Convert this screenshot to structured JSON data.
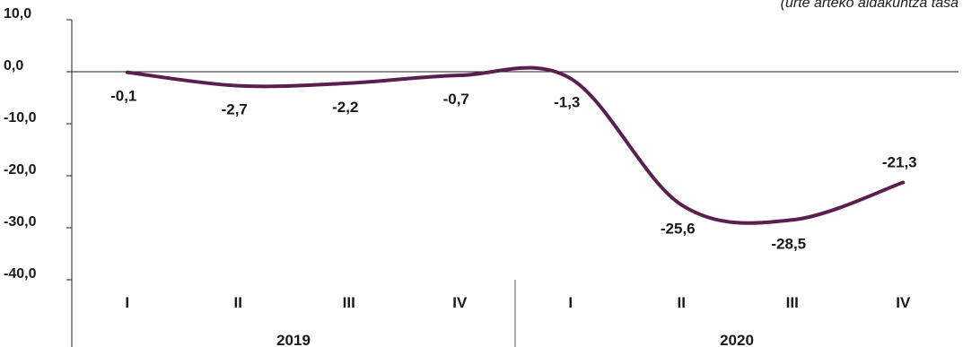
{
  "chart_data": {
    "type": "line",
    "subtitle": "(urte arteko aldakuntza  tasa",
    "years": [
      "2019",
      "2020"
    ],
    "categories": [
      "I",
      "II",
      "III",
      "IV",
      "I",
      "II",
      "III",
      "IV"
    ],
    "series": [
      {
        "values": [
          -0.1,
          -2.7,
          -2.2,
          -0.7,
          -1.3,
          -25.6,
          -28.5,
          -21.3
        ],
        "labels": [
          "-0,1",
          "-2,7",
          "-2,2",
          "-0,7",
          "-1,3",
          "-25,6",
          "-28,5",
          "-21,3"
        ],
        "color": "#5a1f4e"
      }
    ],
    "yticks": [
      "10,0",
      "0,0",
      "-10,0",
      "-20,0",
      "-30,0",
      "-40,0"
    ],
    "ylim": [
      -40,
      10
    ],
    "grid": false
  }
}
